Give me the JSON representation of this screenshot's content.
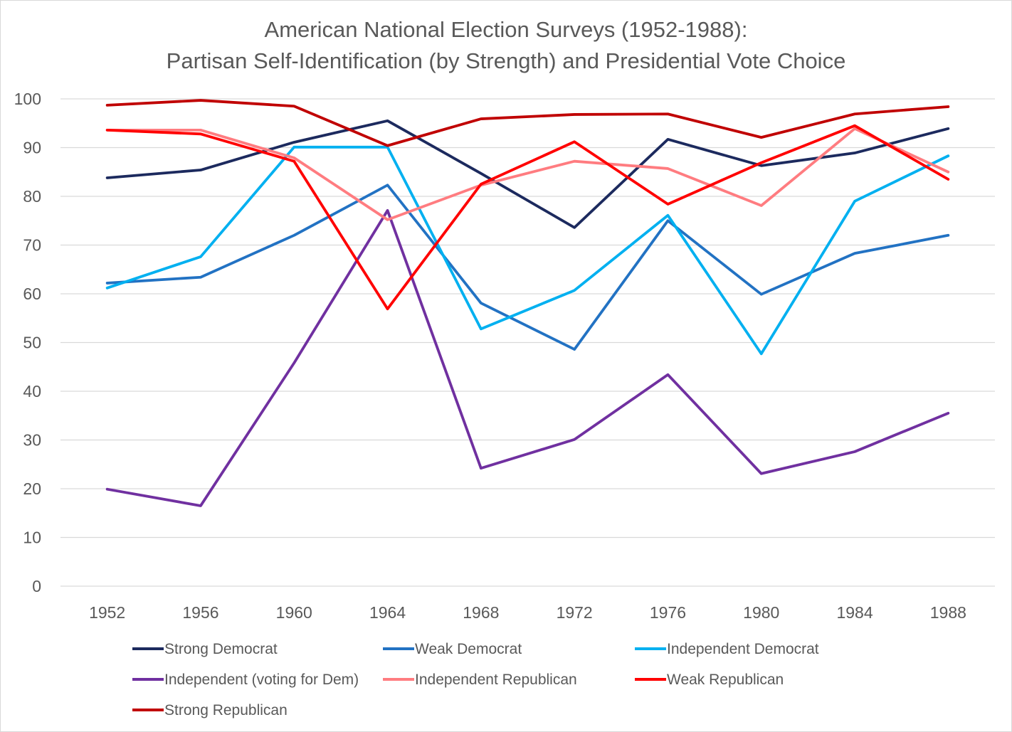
{
  "chart_data": {
    "type": "line",
    "title": "American National Election Surveys (1952-1988):",
    "subtitle": "Partisan Self-Identification (by Strength) and Presidential Vote Choice",
    "xlabel": "",
    "ylabel": "",
    "categories": [
      "1952",
      "1956",
      "1960",
      "1964",
      "1968",
      "1972",
      "1976",
      "1980",
      "1984",
      "1988"
    ],
    "ylim": [
      0,
      100
    ],
    "yticks": [
      "0",
      "10",
      "20",
      "30",
      "40",
      "50",
      "60",
      "70",
      "80",
      "90",
      "100"
    ],
    "grid": true,
    "legend": "bottom",
    "series": [
      {
        "name": "Strong Democrat",
        "color": "#1c2a5e",
        "values": [
          83.8,
          85.4,
          91.1,
          95.5,
          84.7,
          73.6,
          91.7,
          86.3,
          88.9,
          93.9
        ]
      },
      {
        "name": "Weak Democrat",
        "color": "#2272c3",
        "values": [
          62.2,
          63.4,
          72.0,
          82.3,
          58.1,
          48.6,
          75.0,
          59.9,
          68.3,
          72.0
        ]
      },
      {
        "name": "Independent Democrat",
        "color": "#00b0f0",
        "values": [
          61.2,
          67.6,
          90.1,
          90.1,
          52.8,
          60.7,
          76.1,
          47.7,
          79.0,
          88.3
        ]
      },
      {
        "name": "Independent (voting for Dem)",
        "color": "#7030a0",
        "values": [
          19.9,
          16.5,
          45.8,
          77.1,
          24.2,
          30.1,
          43.4,
          23.1,
          27.6,
          35.5
        ]
      },
      {
        "name": "Independent Republican",
        "color": "#ff7c80",
        "values": [
          93.6,
          93.6,
          87.9,
          75.2,
          82.3,
          87.2,
          85.7,
          78.1,
          93.9,
          85.0
        ]
      },
      {
        "name": "Weak Republican",
        "color": "#ff0000",
        "values": [
          93.6,
          92.8,
          87.2,
          56.9,
          82.5,
          91.2,
          78.4,
          86.9,
          94.5,
          83.5
        ]
      },
      {
        "name": "Strong Republican",
        "color": "#c00000",
        "values": [
          98.7,
          99.7,
          98.5,
          90.4,
          95.9,
          96.8,
          96.9,
          92.1,
          96.9,
          98.4
        ]
      }
    ]
  }
}
